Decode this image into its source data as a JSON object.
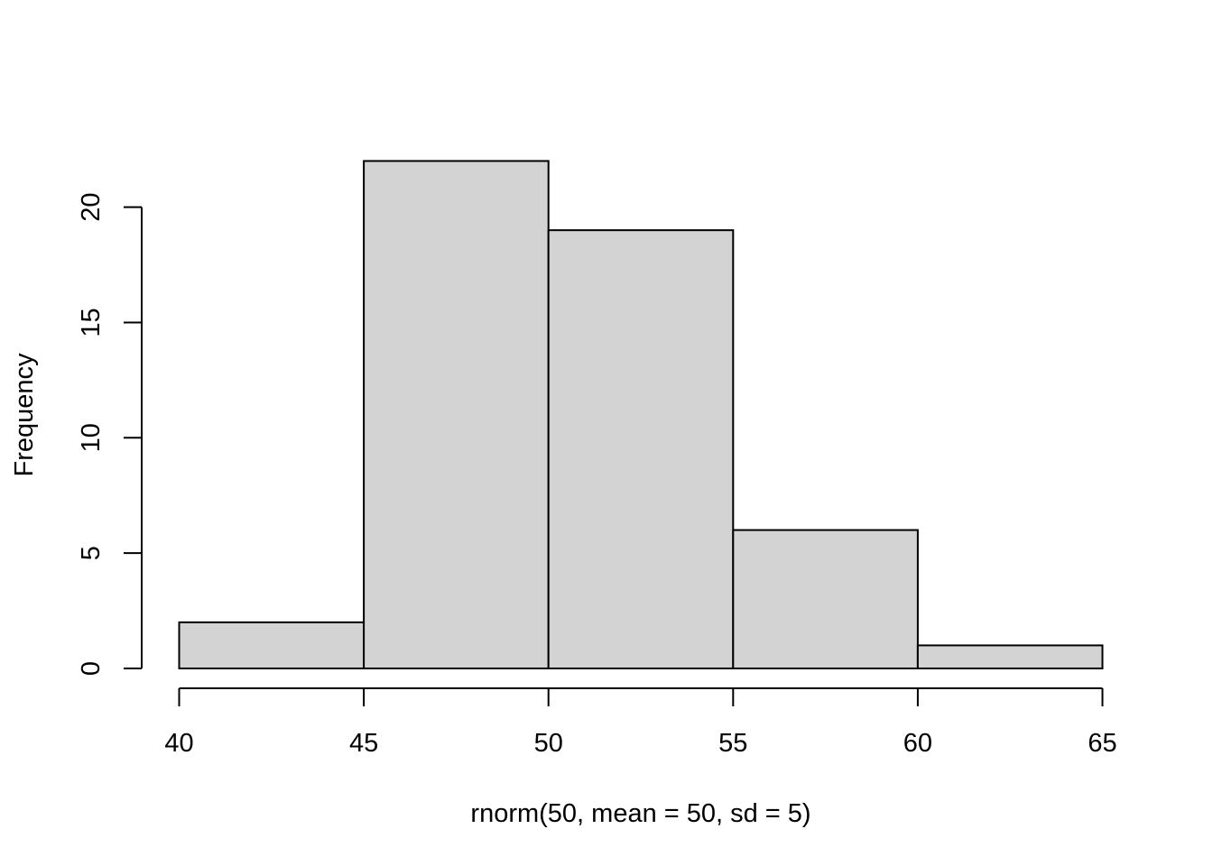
{
  "chart_data": {
    "type": "bar",
    "subtype": "histogram",
    "title": "",
    "xlabel": "rnorm(50, mean = 50, sd = 5)",
    "ylabel": "Frequency",
    "bins": [
      {
        "from": 40,
        "to": 45,
        "count": 2
      },
      {
        "from": 45,
        "to": 50,
        "count": 22
      },
      {
        "from": 50,
        "to": 55,
        "count": 19
      },
      {
        "from": 55,
        "to": 60,
        "count": 6
      },
      {
        "from": 60,
        "to": 65,
        "count": 1
      }
    ],
    "x_ticks": [
      40,
      45,
      50,
      55,
      60,
      65
    ],
    "y_ticks": [
      0,
      5,
      10,
      15,
      20
    ],
    "xlim": [
      40,
      65
    ],
    "ylim": [
      0,
      22
    ],
    "grid": false,
    "legend": "none",
    "colors": {
      "bar_fill": "#d3d3d3",
      "bar_stroke": "#000000",
      "axis": "#000000",
      "background": "#ffffff"
    }
  }
}
